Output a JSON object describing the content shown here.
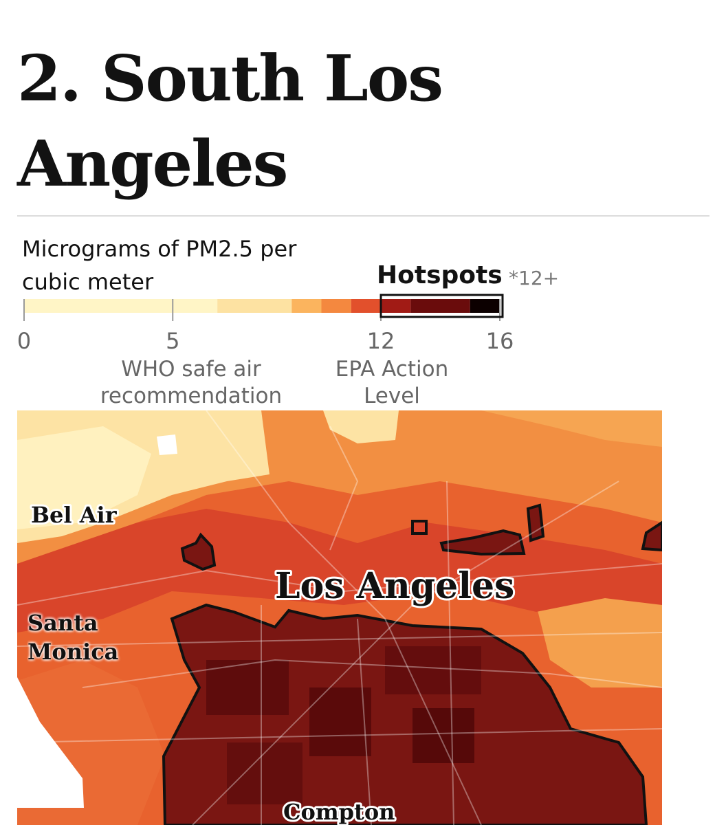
{
  "header": {
    "title": "2. South Los Angeles"
  },
  "legend": {
    "title": "Micrograms of PM2.5 per cubic meter",
    "hotspot_label": "Hotspots",
    "hotspot_note": "*12+",
    "lim": [
      0,
      16
    ],
    "ticks": [
      0,
      5,
      12,
      16
    ],
    "bins": [
      0,
      6.5,
      9,
      10,
      11,
      12,
      13,
      15,
      16
    ],
    "colors": [
      "#fff5c6",
      "#fde2a2",
      "#fbb45e",
      "#f4883f",
      "#e2502c",
      "#a11b15",
      "#6a0c0c",
      "#0c0000"
    ],
    "annotations": [
      "WHO safe air recommendation",
      "EPA Action Level"
    ]
  },
  "map": {
    "labels": [
      "Bel Air",
      "Los Angeles",
      "Santa Monica",
      "Compton"
    ]
  }
}
